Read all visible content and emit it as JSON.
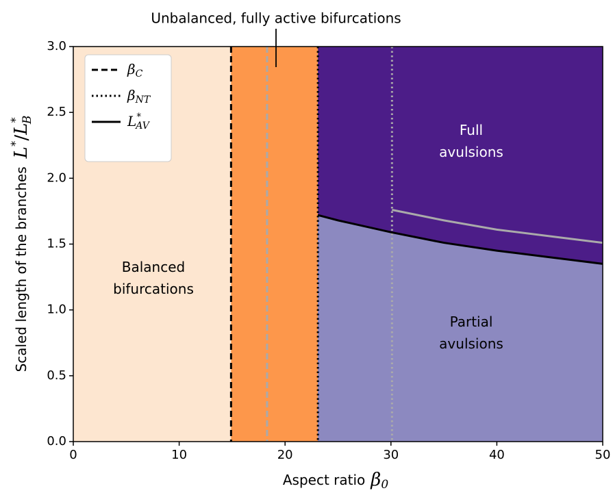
{
  "chart_data": {
    "type": "line",
    "title": "Unbalanced, fully active bifurcations",
    "xlabel": "Aspect ratio",
    "xlabel_math": {
      "name": "β",
      "sub": "0"
    },
    "ylabel": "Scaled length of the branches",
    "ylabel_math": {
      "name": "L",
      "sup": "*",
      "slash": "/",
      "name2": "L",
      "sup2": "*",
      "sub2": "B"
    },
    "xlim": [
      0,
      50
    ],
    "ylim": [
      0,
      3
    ],
    "xticks": [
      0,
      10,
      20,
      30,
      40,
      50
    ],
    "yticks": [
      {
        "value": 0,
        "label": "0.0"
      },
      0.5,
      {
        "value": 1,
        "label": "1.0"
      },
      1.5,
      {
        "value": 2,
        "label": "2.0"
      },
      2.5,
      {
        "value": 3,
        "label": "3.0"
      }
    ],
    "regions": [
      {
        "x": [
          0,
          14.9
        ],
        "color": "#fde6d0"
      },
      {
        "x": [
          14.9,
          23.1
        ],
        "color": "#fd974b"
      }
    ],
    "region_labels": [
      {
        "lines": [
          "Balanced",
          "bifurcations"
        ]
      },
      {
        "lines": [
          "Full",
          "avulsions"
        ]
      },
      {
        "lines": [
          "Partial",
          "avulsions"
        ]
      }
    ],
    "vlines": [
      {
        "name": "β",
        "sub": "C",
        "x": 14.9,
        "color": "#000000",
        "style": "dashed"
      },
      {
        "x": 18.3,
        "color": "#aaaaaa",
        "style": "dashed"
      },
      {
        "name": "β",
        "sub": "NT",
        "x": 23.1,
        "color": "#000000",
        "style": "dotted"
      },
      {
        "x": 30.1,
        "color": "#aaaaaa",
        "style": "dotted"
      }
    ],
    "series": [
      {
        "name": "L",
        "sup": "*",
        "sub": "AV",
        "color": "#000000",
        "fill_above": "#4c1d88",
        "fill_below": "#8c89c0",
        "x": [
          23.1,
          25,
          30,
          35,
          40,
          45,
          50
        ],
        "values": [
          1.72,
          1.68,
          1.59,
          1.51,
          1.45,
          1.4,
          1.35
        ]
      },
      {
        "color": "#aaaaaa",
        "x": [
          30.1,
          35,
          40,
          45,
          50
        ],
        "values": [
          1.76,
          1.68,
          1.61,
          1.56,
          1.51
        ]
      }
    ],
    "legend": "upper left"
  }
}
